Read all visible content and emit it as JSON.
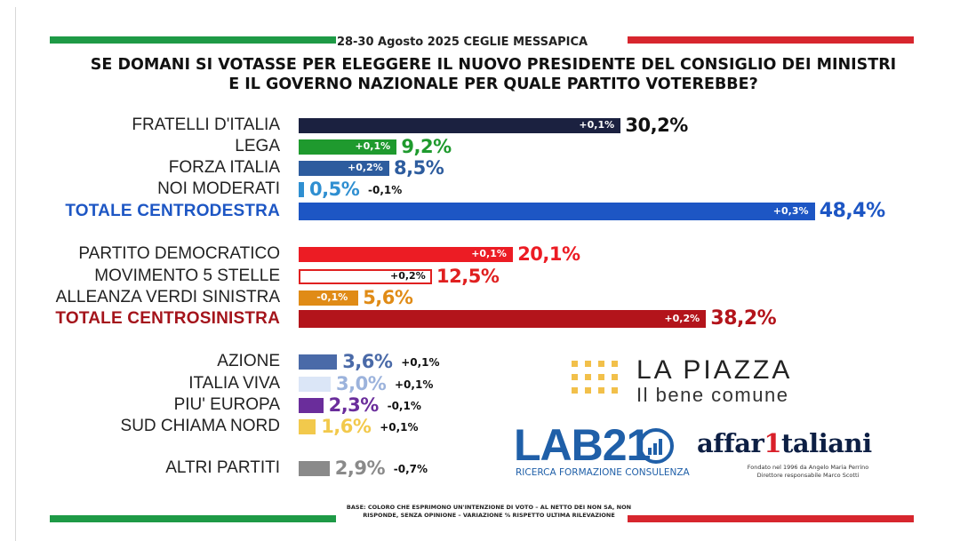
{
  "header": {
    "date": "28-30 Agosto 2025 CEGLIE MESSAPICA",
    "question": "SE DOMANI SI VOTASSE PER ELEGGERE IL NUOVO PRESIDENTE DEL CONSIGLIO DEI MINISTRI E IL GOVERNO NAZIONALE PER QUALE PARTITO VOTEREBBE?"
  },
  "colors": {
    "italy_green": "#1e9a46",
    "italy_red": "#d7262e"
  },
  "chart_data": {
    "type": "bar",
    "orientation": "horizontal",
    "categories": [
      "FRATELLI D'ITALIA",
      "LEGA",
      "FORZA ITALIA",
      "NOI MODERATI",
      "TOTALE CENTRODESTRA",
      "PARTITO DEMOCRATICO",
      "MOVIMENTO 5 STELLE",
      "ALLEANZA VERDI SINISTRA",
      "TOTALE CENTROSINISTRA",
      "AZIONE",
      "ITALIA VIVA",
      "PIU' EUROPA",
      "SUD CHIAMA NORD",
      "ALTRI PARTITI"
    ],
    "values": [
      30.2,
      9.2,
      8.5,
      0.5,
      48.4,
      20.1,
      12.5,
      5.6,
      38.2,
      3.6,
      3.0,
      2.3,
      1.6,
      2.9
    ],
    "value_labels": [
      "30,2%",
      "9,2%",
      "8,5%",
      "0,5%",
      "48,4%",
      "20,1%",
      "12,5%",
      "5,6%",
      "38,2%",
      "3,6%",
      "3,0%",
      "2,3%",
      "1,6%",
      "2,9%"
    ],
    "change_labels": [
      "+0,1%",
      "+0,1%",
      "+0,2%",
      "-0,1%",
      "+0,3%",
      "+0,1%",
      "+0,2%",
      "-0,1%",
      "+0,2%",
      "+0,1%",
      "+0,1%",
      "-0,1%",
      "+0,1%",
      "-0,7%"
    ],
    "bar_colors": [
      "#1b2140",
      "#1f9a2e",
      "#2d5c9e",
      "#2f8fd1",
      "#1d56c4",
      "#ec1c24",
      "#ffffff",
      "#e08b16",
      "#b3141b",
      "#4a6aa8",
      "#dbe6f7",
      "#6a2d9b",
      "#f2c94c",
      "#8a8a8a"
    ],
    "label_colors": [
      "#222222",
      "#222222",
      "#222222",
      "#222222",
      "#1d56c4",
      "#222222",
      "#222222",
      "#222222",
      "#a4141b",
      "#222222",
      "#222222",
      "#222222",
      "#222222",
      "#222222"
    ],
    "value_colors": [
      "#111111",
      "#1f9a2e",
      "#2d5c9e",
      "#2f8fd1",
      "#1d56c4",
      "#ec1c24",
      "#e02020",
      "#e08b16",
      "#b3141b",
      "#4a6aa8",
      "#9cb3dc",
      "#6a2d9b",
      "#f2c94c",
      "#8a8a8a"
    ],
    "totals": [
      false,
      false,
      false,
      false,
      true,
      false,
      false,
      false,
      true,
      false,
      false,
      false,
      false,
      false
    ],
    "xlim": [
      0,
      100
    ]
  },
  "logos": {
    "lapiazza_title": "LA PIAZZA",
    "lapiazza_sub": "Il bene comune",
    "lab21_text": "LAB21",
    "lab21_sub": "RICERCA FORMAZIONE CONSULENZA",
    "affari_a": "affar",
    "affari_1": "1",
    "affari_b": "taliani",
    "affari_sub1": "Fondato nel 1996 da Angelo Maria Perrino",
    "affari_sub2": "Direttore responsabile Marco Scotti"
  },
  "footnote": "BASE: COLORO CHE ESPRIMONO UN'INTENZIONE DI VOTO – AL NETTO DEI NON SA, NON RISPONDE, SENZA OPINIONE – VARIAZIONE % RISPETTO ULTIMA RILEVAZIONE"
}
